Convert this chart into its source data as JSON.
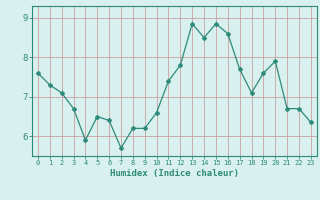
{
  "x": [
    0,
    1,
    2,
    3,
    4,
    5,
    6,
    7,
    8,
    9,
    10,
    11,
    12,
    13,
    14,
    15,
    16,
    17,
    18,
    19,
    20,
    21,
    22,
    23
  ],
  "y": [
    7.6,
    7.3,
    7.1,
    6.7,
    5.9,
    6.5,
    6.4,
    5.7,
    6.2,
    6.2,
    6.6,
    7.4,
    7.8,
    8.85,
    8.5,
    8.85,
    8.6,
    7.7,
    7.1,
    7.6,
    7.9,
    6.7,
    6.7,
    6.35
  ],
  "line_color": "#2e8b7a",
  "marker": "D",
  "marker_size": 2,
  "bg_color": "#d8f0ee",
  "grid_color": "#c8a0a0",
  "axis_color": "#2e8b7a",
  "xlabel": "Humidex (Indice chaleur)",
  "xlim": [
    -0.5,
    23.5
  ],
  "ylim": [
    5.5,
    9.3
  ],
  "yticks": [
    6,
    7,
    8,
    9
  ],
  "xticks": [
    0,
    1,
    2,
    3,
    4,
    5,
    6,
    7,
    8,
    9,
    10,
    11,
    12,
    13,
    14,
    15,
    16,
    17,
    18,
    19,
    20,
    21,
    22,
    23
  ],
  "xlabel_fontsize": 6.5,
  "xtick_fontsize": 5.0,
  "ytick_fontsize": 6.5
}
